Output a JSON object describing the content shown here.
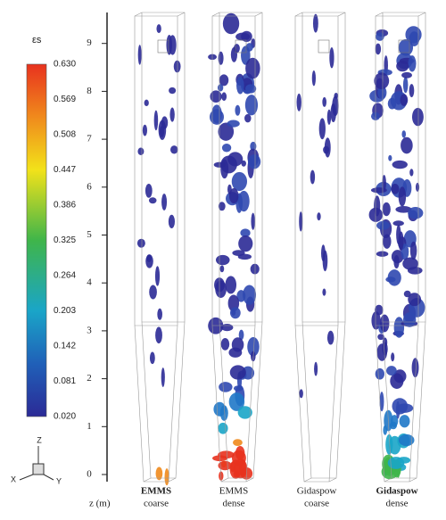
{
  "colorbar": {
    "label": "εs",
    "ticks": [
      "0.630",
      "0.569",
      "0.508",
      "0.447",
      "0.386",
      "0.325",
      "0.264",
      "0.203",
      "0.142",
      "0.081",
      "0.020"
    ]
  },
  "axis": {
    "label": "z (m)",
    "ticks": [
      "0",
      "1",
      "2",
      "3",
      "4",
      "5",
      "6",
      "7",
      "8",
      "9"
    ]
  },
  "panels": [
    {
      "model": "EMMS",
      "grid": "coarse"
    },
    {
      "model": "EMMS",
      "grid": "dense"
    },
    {
      "model": "Gidaspow",
      "grid": "coarse"
    },
    {
      "model": "Gidaspow",
      "grid": "dense"
    }
  ],
  "triad": {
    "z": "Z",
    "x": "X",
    "y": "Y"
  }
}
